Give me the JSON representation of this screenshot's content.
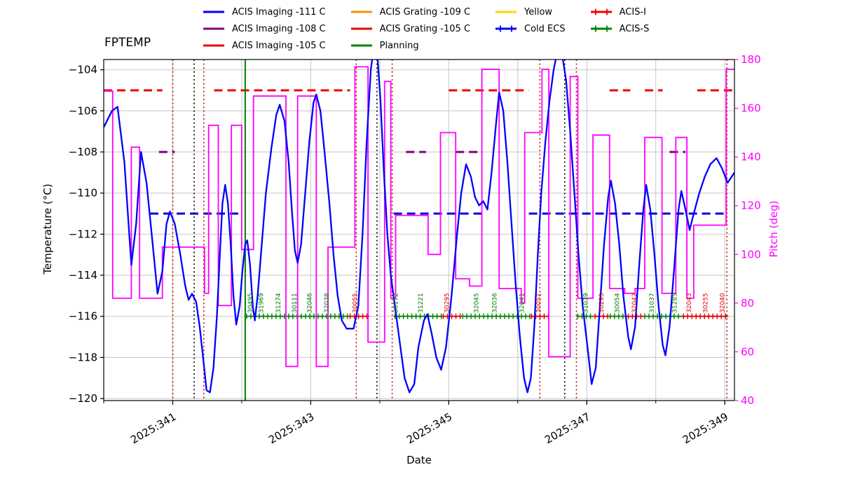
{
  "legend": {
    "items": [
      {
        "label": "ACIS Imaging -111 C",
        "color": "#0000ff",
        "style": "line"
      },
      {
        "label": "ACIS Imaging -108 C",
        "color": "#800080",
        "style": "line"
      },
      {
        "label": "ACIS Imaging -105 C",
        "color": "#ee0000",
        "style": "line"
      },
      {
        "label": "ACIS Grating -109 C",
        "color": "#ff8c00",
        "style": "line"
      },
      {
        "label": "ACIS Grating -105 C",
        "color": "#ee0000",
        "style": "line"
      },
      {
        "label": "Planning",
        "color": "#008000",
        "style": "line"
      },
      {
        "label": "Yellow",
        "color": "#ffd700",
        "style": "line"
      },
      {
        "label": "Cold ECS",
        "color": "#0000ff",
        "style": "line-plus"
      },
      {
        "label": "ACIS-I",
        "color": "#ee0000",
        "style": "line-plus"
      },
      {
        "label": "ACIS-S",
        "color": "#008000",
        "style": "line-plus"
      }
    ]
  },
  "chart_data": {
    "type": "line",
    "title": "FPTEMP",
    "xlabel": "Date",
    "ylabel_left": "Temperature (°C)",
    "ylabel_right": "Pitch (deg)",
    "x_range": [
      340.0,
      349.14
    ],
    "y_left_range": [
      -120.1,
      -103.5
    ],
    "y_right_range": [
      40,
      180
    ],
    "grid_color": "#c6c6c6",
    "x_ticks": [
      {
        "value": 341,
        "label": "2025:341"
      },
      {
        "value": 343,
        "label": "2025:343"
      },
      {
        "value": 345,
        "label": "2025:345"
      },
      {
        "value": 347,
        "label": "2025:347"
      },
      {
        "value": 349,
        "label": "2025:349"
      }
    ],
    "y_left_ticks": [
      {
        "value": -104,
        "label": "−104"
      },
      {
        "value": -106,
        "label": "−106"
      },
      {
        "value": -108,
        "label": "−108"
      },
      {
        "value": -110,
        "label": "−110"
      },
      {
        "value": -112,
        "label": "−112"
      },
      {
        "value": -114,
        "label": "−114"
      },
      {
        "value": -116,
        "label": "−116"
      },
      {
        "value": -118,
        "label": "−118"
      },
      {
        "value": -120,
        "label": "−120"
      }
    ],
    "y_right_ticks": [
      {
        "value": 40,
        "label": "40"
      },
      {
        "value": 60,
        "label": "60"
      },
      {
        "value": 80,
        "label": "80"
      },
      {
        "value": 100,
        "label": "100"
      },
      {
        "value": 120,
        "label": "120"
      },
      {
        "value": 140,
        "label": "140"
      },
      {
        "value": 160,
        "label": "160"
      },
      {
        "value": 180,
        "label": "180"
      }
    ],
    "series": [
      {
        "name": "FPTEMP",
        "axis": "left",
        "color": "#0000ff",
        "width": 2.3,
        "x": [
          340.0,
          340.12,
          340.2,
          340.3,
          340.4,
          340.47,
          340.54,
          340.62,
          340.71,
          340.78,
          340.85,
          340.91,
          340.96,
          341.03,
          341.11,
          341.18,
          341.23,
          341.28,
          341.34,
          341.39,
          341.44,
          341.49,
          341.54,
          341.59,
          341.64,
          341.69,
          341.72,
          341.76,
          341.8,
          341.84,
          341.88,
          341.92,
          341.97,
          342.01,
          342.05,
          342.08,
          342.12,
          342.16,
          342.19,
          342.23,
          342.29,
          342.35,
          342.43,
          342.5,
          342.55,
          342.62,
          342.68,
          342.73,
          342.77,
          342.81,
          342.86,
          342.92,
          342.98,
          343.04,
          343.08,
          343.14,
          343.2,
          343.27,
          343.33,
          343.39,
          343.45,
          343.52,
          343.62,
          343.69,
          343.75,
          343.81,
          343.87,
          343.91,
          343.96,
          344.01,
          344.06,
          344.11,
          344.16,
          344.22,
          344.28,
          344.36,
          344.43,
          344.5,
          344.56,
          344.64,
          344.69,
          344.75,
          344.82,
          344.89,
          344.96,
          345.04,
          345.12,
          345.18,
          345.25,
          345.32,
          345.38,
          345.44,
          345.5,
          345.56,
          345.62,
          345.68,
          345.73,
          345.79,
          345.85,
          345.91,
          345.97,
          346.03,
          346.09,
          346.14,
          346.19,
          346.24,
          346.29,
          346.34,
          346.4,
          346.46,
          346.52,
          346.58,
          346.64,
          346.7,
          346.76,
          346.82,
          346.88,
          346.94,
          347.01,
          347.07,
          347.13,
          347.19,
          347.25,
          347.31,
          347.35,
          347.41,
          347.47,
          347.53,
          347.6,
          347.64,
          347.7,
          347.76,
          347.82,
          347.86,
          347.92,
          347.98,
          348.04,
          348.1,
          348.14,
          348.2,
          348.27,
          348.33,
          348.37,
          348.43,
          348.49,
          348.55,
          348.63,
          348.71,
          348.79,
          348.88,
          348.96,
          349.04,
          349.14
        ],
        "y": [
          -106.8,
          -106.0,
          -105.8,
          -108.5,
          -113.5,
          -111.5,
          -108.0,
          -109.5,
          -112.5,
          -114.9,
          -113.8,
          -111.5,
          -110.9,
          -111.5,
          -113.0,
          -114.5,
          -115.2,
          -114.9,
          -115.3,
          -116.5,
          -118.0,
          -119.6,
          -119.7,
          -118.5,
          -116.0,
          -112.5,
          -110.5,
          -109.6,
          -110.5,
          -112.5,
          -115.0,
          -116.4,
          -115.5,
          -113.8,
          -112.5,
          -112.3,
          -113.5,
          -115.5,
          -116.2,
          -115.0,
          -112.5,
          -110.0,
          -107.8,
          -106.2,
          -105.7,
          -106.5,
          -108.5,
          -111.0,
          -112.8,
          -113.4,
          -112.5,
          -110.0,
          -107.5,
          -105.6,
          -105.2,
          -106.0,
          -108.0,
          -110.5,
          -113.0,
          -115.0,
          -116.2,
          -116.6,
          -116.6,
          -115.5,
          -112.0,
          -107.5,
          -104.0,
          -103.0,
          -103.0,
          -105.5,
          -109.0,
          -112.0,
          -114.0,
          -115.5,
          -117.0,
          -119.0,
          -119.7,
          -119.3,
          -117.5,
          -116.2,
          -115.9,
          -116.8,
          -118.0,
          -118.6,
          -117.5,
          -115.0,
          -112.0,
          -110.0,
          -108.6,
          -109.2,
          -110.2,
          -110.6,
          -110.4,
          -110.8,
          -109.0,
          -106.8,
          -105.1,
          -106.0,
          -108.5,
          -111.5,
          -114.5,
          -117.0,
          -119.0,
          -119.7,
          -119.0,
          -116.5,
          -113.0,
          -110.0,
          -107.5,
          -105.5,
          -104.0,
          -103.0,
          -103.2,
          -104.5,
          -107.0,
          -110.0,
          -113.0,
          -115.5,
          -117.5,
          -119.3,
          -118.5,
          -115.5,
          -112.5,
          -110.2,
          -109.4,
          -110.5,
          -112.5,
          -115.0,
          -117.0,
          -117.6,
          -116.5,
          -113.5,
          -110.8,
          -109.6,
          -110.8,
          -113.0,
          -115.5,
          -117.4,
          -117.9,
          -116.5,
          -113.5,
          -110.8,
          -109.9,
          -110.8,
          -111.8,
          -111.0,
          -110.0,
          -109.2,
          -108.6,
          -108.3,
          -108.8,
          -109.5,
          -109.0
        ]
      },
      {
        "name": "Pitch",
        "axis": "right",
        "color": "#ff00ff",
        "width": 1.8,
        "type": "step",
        "steps": [
          [
            340.0,
            167
          ],
          [
            340.13,
            82
          ],
          [
            340.4,
            144
          ],
          [
            340.52,
            82
          ],
          [
            340.85,
            103
          ],
          [
            341.46,
            84
          ],
          [
            341.52,
            153
          ],
          [
            341.66,
            79
          ],
          [
            341.85,
            153
          ],
          [
            342.0,
            102
          ],
          [
            342.17,
            165
          ],
          [
            342.64,
            54
          ],
          [
            342.81,
            165
          ],
          [
            343.08,
            54
          ],
          [
            343.25,
            103
          ],
          [
            343.64,
            177
          ],
          [
            343.83,
            64
          ],
          [
            344.07,
            171
          ],
          [
            344.16,
            82
          ],
          [
            344.23,
            116
          ],
          [
            344.7,
            100
          ],
          [
            344.88,
            150
          ],
          [
            345.1,
            90
          ],
          [
            345.3,
            87
          ],
          [
            345.48,
            176
          ],
          [
            345.73,
            86
          ],
          [
            346.05,
            80
          ],
          [
            346.1,
            150
          ],
          [
            346.35,
            176
          ],
          [
            346.45,
            58
          ],
          [
            346.76,
            173
          ],
          [
            346.87,
            82
          ],
          [
            347.09,
            149
          ],
          [
            347.33,
            86
          ],
          [
            347.55,
            84
          ],
          [
            347.7,
            86
          ],
          [
            347.84,
            148
          ],
          [
            348.09,
            84
          ],
          [
            348.29,
            148
          ],
          [
            348.45,
            82
          ],
          [
            348.55,
            112
          ],
          [
            349.02,
            176
          ]
        ]
      }
    ],
    "limit_lines": [
      {
        "name": "ACIS Imaging -105 C",
        "y": -105,
        "color": "#ee0000",
        "width": 3,
        "dash": "12 7",
        "spans": [
          [
            340.0,
            340.85
          ],
          [
            341.6,
            343.57
          ],
          [
            345.0,
            346.16
          ],
          [
            347.33,
            347.63
          ],
          [
            347.84,
            348.1
          ],
          [
            348.6,
            349.14
          ]
        ]
      },
      {
        "name": "ACIS Imaging -108 C",
        "y": -108,
        "color": "#800080",
        "width": 3,
        "dash": "12 7",
        "spans": [
          [
            340.8,
            341.03
          ],
          [
            344.38,
            344.67
          ],
          [
            345.1,
            345.42
          ],
          [
            348.2,
            348.43
          ]
        ]
      },
      {
        "name": "ACIS Imaging -111 C",
        "y": -111,
        "color": "#0000dd",
        "width": 3,
        "dash": "12 7",
        "spans": [
          [
            340.67,
            342.0
          ],
          [
            344.2,
            345.5
          ],
          [
            346.16,
            349.05
          ]
        ]
      }
    ],
    "instrument_segments": {
      "y": -116,
      "items": [
        {
          "instrument": "ACIS-S",
          "color": "#008000",
          "start": 342.05,
          "end": 343.55
        },
        {
          "instrument": "ACIS-I",
          "color": "#dd0000",
          "start": 343.55,
          "end": 343.85
        },
        {
          "instrument": "ACIS-S",
          "color": "#008000",
          "start": 344.2,
          "end": 344.9
        },
        {
          "instrument": "ACIS-I",
          "color": "#dd0000",
          "start": 344.9,
          "end": 345.18
        },
        {
          "instrument": "ACIS-S",
          "color": "#008000",
          "start": 345.18,
          "end": 346.18
        },
        {
          "instrument": "ACIS-I",
          "color": "#dd0000",
          "start": 346.18,
          "end": 346.45
        },
        {
          "instrument": "ACIS-S",
          "color": "#008000",
          "start": 346.85,
          "end": 347.1
        },
        {
          "instrument": "ACIS-I",
          "color": "#dd0000",
          "start": 347.1,
          "end": 347.32
        },
        {
          "instrument": "ACIS-S",
          "color": "#008000",
          "start": 347.32,
          "end": 347.58
        },
        {
          "instrument": "ACIS-I",
          "color": "#dd0000",
          "start": 347.58,
          "end": 347.82
        },
        {
          "instrument": "ACIS-S",
          "color": "#008000",
          "start": 347.82,
          "end": 348.38
        },
        {
          "instrument": "ACIS-I",
          "color": "#dd0000",
          "start": 348.38,
          "end": 349.05
        }
      ]
    },
    "vlines": [
      {
        "x": 341.0,
        "color": "#cc1100",
        "style": "dotted"
      },
      {
        "x": 341.31,
        "color": "#000000",
        "style": "dotted"
      },
      {
        "x": 341.45,
        "color": "#cc1100",
        "style": "dotted"
      },
      {
        "x": 342.05,
        "color": "#008000",
        "style": "solid"
      },
      {
        "x": 343.66,
        "color": "#cc1100",
        "style": "dotted"
      },
      {
        "x": 343.96,
        "color": "#000000",
        "style": "dotted"
      },
      {
        "x": 344.18,
        "color": "#cc1100",
        "style": "dotted"
      },
      {
        "x": 346.32,
        "color": "#cc1100",
        "style": "dotted"
      },
      {
        "x": 346.68,
        "color": "#000000",
        "style": "dotted"
      },
      {
        "x": 346.85,
        "color": "#cc1100",
        "style": "dotted"
      },
      {
        "x": 349.03,
        "color": "#cc1100",
        "style": "dotted"
      }
    ],
    "obsids": [
      {
        "id": "30495",
        "x": 342.12,
        "color": "#008000"
      },
      {
        "id": "31969",
        "x": 342.28,
        "color": "#008000"
      },
      {
        "id": "31274",
        "x": 342.53,
        "color": "#008000"
      },
      {
        "id": "30111",
        "x": 342.76,
        "color": "#008000"
      },
      {
        "id": "32046",
        "x": 342.98,
        "color": "#008000"
      },
      {
        "id": "32038",
        "x": 343.23,
        "color": "#008000"
      },
      {
        "id": "30055",
        "x": 343.64,
        "color": "#dd0000"
      },
      {
        "id": "30172",
        "x": 344.23,
        "color": "#008000"
      },
      {
        "id": "31221",
        "x": 344.59,
        "color": "#008000"
      },
      {
        "id": "30295",
        "x": 344.97,
        "color": "#dd0000"
      },
      {
        "id": "32045",
        "x": 345.4,
        "color": "#008000"
      },
      {
        "id": "32036",
        "x": 345.66,
        "color": "#008000"
      },
      {
        "id": "32041",
        "x": 346.06,
        "color": "#008000"
      },
      {
        "id": "30051",
        "x": 346.3,
        "color": "#dd0000"
      },
      {
        "id": "31039",
        "x": 346.98,
        "color": "#008000"
      },
      {
        "id": "30293",
        "x": 347.21,
        "color": "#dd0000"
      },
      {
        "id": "30054",
        "x": 347.44,
        "color": "#008000"
      },
      {
        "id": "32042",
        "x": 347.69,
        "color": "#dd0000"
      },
      {
        "id": "31037",
        "x": 347.94,
        "color": "#008000"
      },
      {
        "id": "31285",
        "x": 348.27,
        "color": "#008000"
      },
      {
        "id": "32043",
        "x": 348.48,
        "color": "#dd0000"
      },
      {
        "id": "30255",
        "x": 348.72,
        "color": "#dd0000"
      },
      {
        "id": "32040",
        "x": 348.96,
        "color": "#dd0000"
      }
    ]
  }
}
